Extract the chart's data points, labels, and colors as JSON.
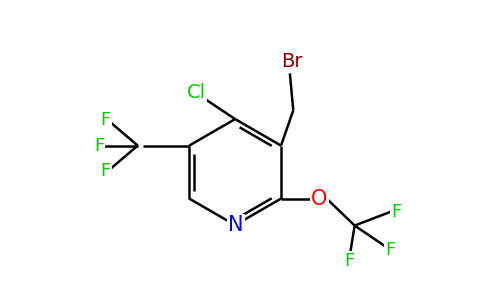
{
  "background_color": "#ffffff",
  "atom_colors": {
    "N": "#0000ff",
    "O": "#ff0000",
    "Cl": "#00cc00",
    "Br": "#8b0000",
    "F": "#00cc00",
    "C": "#000000"
  },
  "bond_lw": 1.8,
  "font_size": 13,
  "figsize": [
    4.84,
    3.0
  ],
  "dpi": 100,
  "xlim": [
    0,
    9.68
  ],
  "ylim": [
    0,
    6.0
  ]
}
